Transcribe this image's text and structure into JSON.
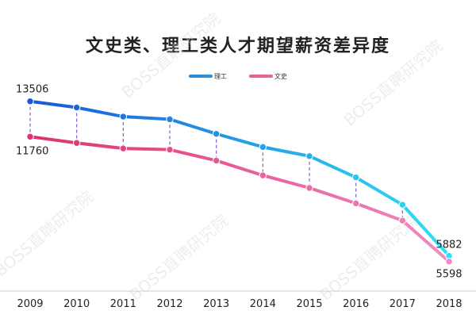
{
  "chart_data": {
    "type": "line",
    "title": "文史类、理工类人才期望薪资差异度",
    "watermark": "BOSS直聘研究院",
    "x": [
      "2009",
      "2010",
      "2011",
      "2012",
      "2013",
      "2014",
      "2015",
      "2016",
      "2017",
      "2018"
    ],
    "ylim": [
      5000,
      14200
    ],
    "series": [
      {
        "name": "理工",
        "colors": [
          "#1a57d6",
          "#2ee0f5"
        ],
        "values": [
          13506,
          13200,
          12750,
          12620,
          11900,
          11250,
          10800,
          9750,
          8400,
          5882
        ],
        "labels": {
          "first": "13506",
          "last": "5882"
        }
      },
      {
        "name": "文史",
        "colors": [
          "#e0306f",
          "#f08ac0"
        ],
        "values": [
          11760,
          11450,
          11180,
          11120,
          10580,
          9850,
          9230,
          8470,
          7620,
          5598
        ],
        "labels": {
          "first": "11760",
          "last": "5598"
        }
      }
    ],
    "grid": false,
    "legend_position": "top-right"
  }
}
